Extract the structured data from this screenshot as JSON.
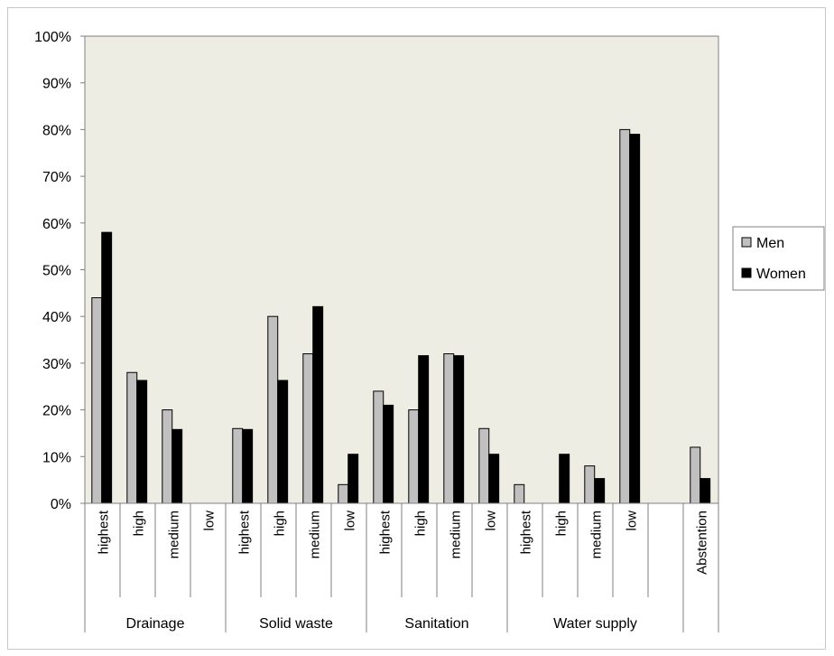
{
  "chart_data": {
    "type": "bar",
    "ylim": [
      0,
      100
    ],
    "y_ticks": [
      "0%",
      "10%",
      "20%",
      "30%",
      "40%",
      "50%",
      "60%",
      "70%",
      "80%",
      "90%",
      "100%"
    ],
    "grid": false,
    "legend_position": "right",
    "groups": [
      {
        "label": "Drainage",
        "categories": [
          "highest",
          "high",
          "medium",
          "low"
        ]
      },
      {
        "label": "Solid waste",
        "categories": [
          "highest",
          "high",
          "medium",
          "low"
        ]
      },
      {
        "label": "Sanitation",
        "categories": [
          "highest",
          "high",
          "medium",
          "low"
        ]
      },
      {
        "label": "Water supply",
        "categories": [
          "highest",
          "high",
          "medium",
          "low",
          ""
        ]
      },
      {
        "label": "",
        "categories": [
          "Abstention"
        ]
      }
    ],
    "series": [
      {
        "name": "Men",
        "values": [
          44,
          28,
          20,
          0,
          16,
          40,
          32,
          4,
          24,
          20,
          32,
          16,
          4,
          0,
          8,
          80,
          0,
          12
        ]
      },
      {
        "name": "Women",
        "values": [
          58,
          26.3,
          15.8,
          0,
          15.8,
          26.3,
          42.1,
          10.5,
          21,
          31.6,
          31.6,
          10.5,
          0,
          10.5,
          5.3,
          79,
          0,
          5.3
        ]
      }
    ],
    "colors": {
      "Men": "#c0c0c0",
      "Women": "#000000",
      "plot_background": "#eeede3"
    }
  }
}
